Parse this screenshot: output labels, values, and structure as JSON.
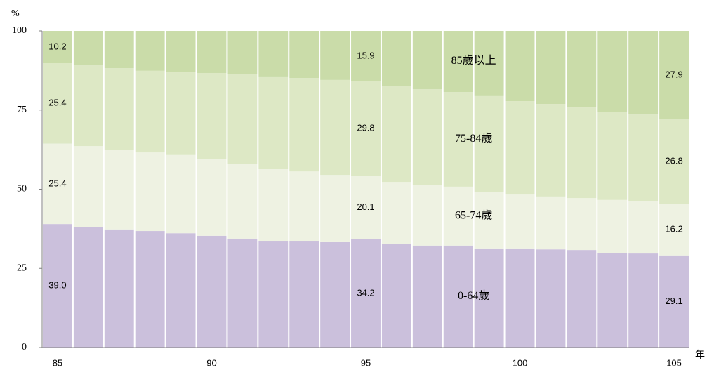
{
  "chart_data": {
    "type": "stacked_bar",
    "y_label": "%",
    "x_label": "年",
    "categories": [
      "85",
      null,
      null,
      null,
      null,
      "90",
      null,
      null,
      null,
      null,
      "95",
      null,
      null,
      null,
      null,
      "100",
      null,
      null,
      null,
      null,
      "105"
    ],
    "ylim": [
      0,
      100
    ],
    "yticks": [
      0,
      25,
      50,
      75,
      100
    ],
    "grid": false,
    "series": [
      {
        "name": "0-64歲",
        "color": "#cbc0dc",
        "values": [
          39.0,
          38.1,
          37.3,
          36.8,
          36.1,
          35.3,
          34.4,
          33.7,
          33.7,
          33.5,
          34.2,
          32.6,
          32.2,
          32.2,
          31.3,
          31.3,
          31.0,
          30.8,
          29.9,
          29.7,
          29.1
        ],
        "value_labels": [
          "39.0",
          null,
          null,
          null,
          null,
          null,
          null,
          null,
          null,
          null,
          "34.2",
          null,
          null,
          null,
          null,
          null,
          null,
          null,
          null,
          null,
          "29.1"
        ]
      },
      {
        "name": "65-74歲",
        "color": "#eef2e2",
        "values": [
          25.4,
          25.5,
          25.2,
          24.8,
          24.7,
          24.1,
          23.5,
          22.8,
          21.9,
          21.0,
          20.1,
          19.7,
          19.0,
          18.6,
          17.9,
          17.0,
          16.7,
          16.4,
          16.7,
          16.4,
          16.2
        ],
        "value_labels": [
          "25.4",
          null,
          null,
          null,
          null,
          null,
          null,
          null,
          null,
          null,
          "20.1",
          null,
          null,
          null,
          null,
          null,
          null,
          null,
          null,
          null,
          "16.2"
        ]
      },
      {
        "name": "75-84歲",
        "color": "#dde8c5",
        "values": [
          25.4,
          25.5,
          25.7,
          25.8,
          26.1,
          27.3,
          28.4,
          29.1,
          29.5,
          30.0,
          29.8,
          30.4,
          30.4,
          29.9,
          30.2,
          29.5,
          29.2,
          28.6,
          27.9,
          27.5,
          26.8
        ],
        "value_labels": [
          "25.4",
          null,
          null,
          null,
          null,
          null,
          null,
          null,
          null,
          null,
          "29.8",
          null,
          null,
          null,
          null,
          null,
          null,
          null,
          null,
          null,
          "26.8"
        ]
      },
      {
        "name": "85歲以上",
        "color": "#cadca9",
        "values": [
          10.2,
          10.9,
          11.8,
          12.6,
          13.1,
          13.3,
          13.7,
          14.4,
          14.9,
          15.5,
          15.9,
          17.3,
          18.4,
          19.3,
          20.6,
          22.2,
          23.1,
          24.2,
          25.5,
          26.4,
          27.9
        ],
        "value_labels": [
          "10.2",
          null,
          null,
          null,
          null,
          null,
          null,
          null,
          null,
          null,
          "15.9",
          null,
          null,
          null,
          null,
          null,
          null,
          null,
          null,
          null,
          "27.9"
        ]
      }
    ]
  }
}
